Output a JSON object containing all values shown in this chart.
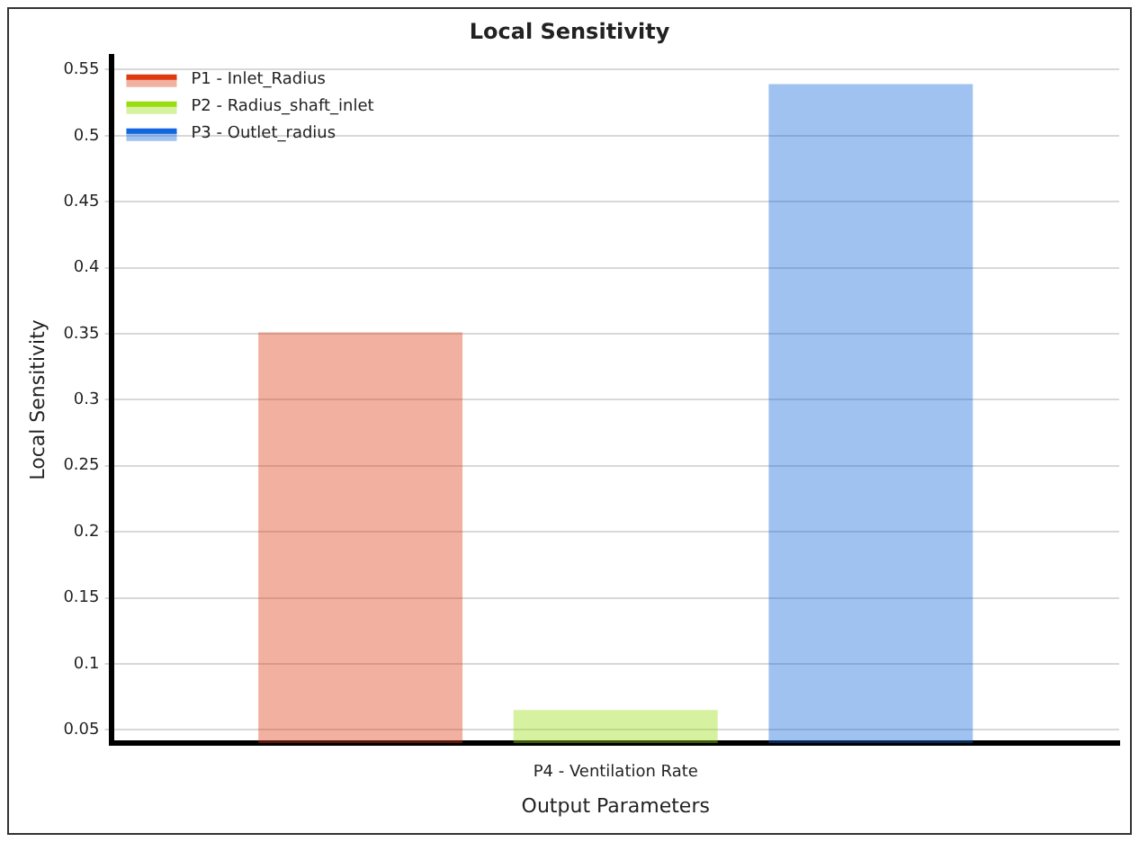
{
  "chart_data": {
    "type": "bar",
    "title": "Local Sensitivity",
    "xlabel": "Output Parameters",
    "ylabel": "Local Sensitivity",
    "categories": [
      "P4 - Ventilation Rate"
    ],
    "series": [
      {
        "name": "P1 - Inlet_Radius",
        "color": "#dd3a12",
        "values": [
          0.351
        ]
      },
      {
        "name": "P2 - Radius_shaft_inlet",
        "color": "#99dd11",
        "values": [
          0.065
        ]
      },
      {
        "name": "P3 - Outlet_radius",
        "color": "#1166dd",
        "values": [
          0.539
        ]
      }
    ],
    "ylim": [
      0.04,
      0.56
    ],
    "yticks": [
      0.05,
      0.1,
      0.15,
      0.2,
      0.25,
      0.3,
      0.35,
      0.4,
      0.45,
      0.5,
      0.55
    ],
    "grid": "y",
    "legend": "top left"
  }
}
